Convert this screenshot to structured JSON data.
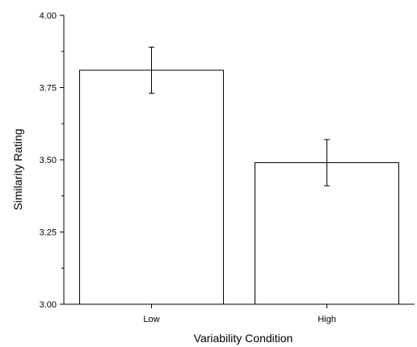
{
  "chart_data": {
    "type": "bar",
    "title": "",
    "xlabel": "Variability Condition",
    "ylabel": "Similarity Rating",
    "categories": [
      "Low",
      "High"
    ],
    "values": [
      3.81,
      3.49
    ],
    "error": [
      {
        "low": 3.73,
        "high": 3.89
      },
      {
        "low": 3.41,
        "high": 3.57
      }
    ],
    "ylim": [
      3.0,
      4.0
    ],
    "yticks": [
      3.0,
      3.25,
      3.5,
      3.75,
      4.0
    ],
    "ytick_labels": [
      "3.00",
      "3.25",
      "3.50",
      "3.75",
      "4.00"
    ],
    "grid": false,
    "legend": "none",
    "bar_fill": "#ffffff",
    "bar_stroke": "#000000"
  }
}
